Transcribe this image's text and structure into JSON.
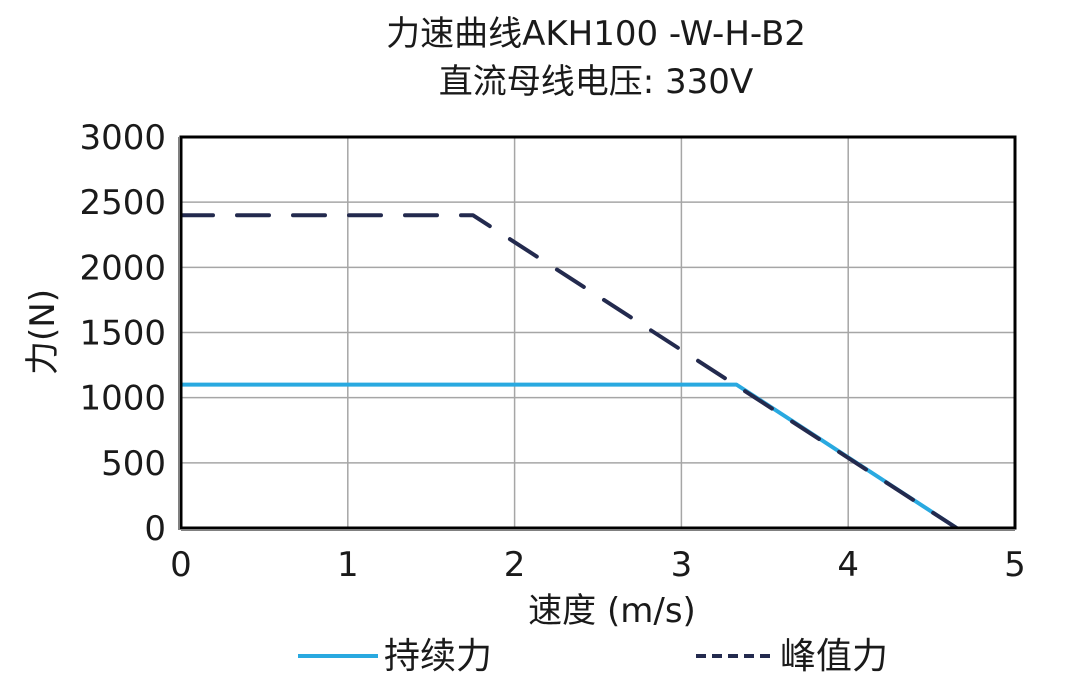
{
  "title": {
    "line1": "力速曲线AKH100 -W-H-B2",
    "line2": "直流母线电压: 330V"
  },
  "colors": {
    "continuous": "#29a9e0",
    "peak": "#232a4e",
    "grid": "#a6a6a6",
    "frame": "#000000"
  },
  "chart_data": {
    "type": "line",
    "title": "力速曲线AKH100 -W-H-B2 / 直流母线电压: 330V",
    "xlabel": "速度 (m/s)",
    "ylabel": "力(N)",
    "xlim": [
      0,
      5
    ],
    "ylim": [
      0,
      3000
    ],
    "x_ticks": [
      "0",
      "1",
      "2",
      "3",
      "4",
      "5"
    ],
    "y_ticks": [
      "0",
      "500",
      "1000",
      "1500",
      "2000",
      "2500",
      "3000"
    ],
    "grid": true,
    "legend_position": "bottom",
    "series": [
      {
        "name": "持续力",
        "style": "solid",
        "color": "#29a9e0",
        "points": [
          [
            0,
            1100
          ],
          [
            3.33,
            1100
          ],
          [
            4.65,
            0
          ]
        ]
      },
      {
        "name": "峰值力",
        "style": "dashed",
        "color": "#232a4e",
        "points": [
          [
            0,
            2400
          ],
          [
            1.75,
            2400
          ],
          [
            4.65,
            0
          ]
        ]
      }
    ]
  },
  "legend": {
    "continuous_label": "持续力",
    "peak_label": "峰值力"
  }
}
